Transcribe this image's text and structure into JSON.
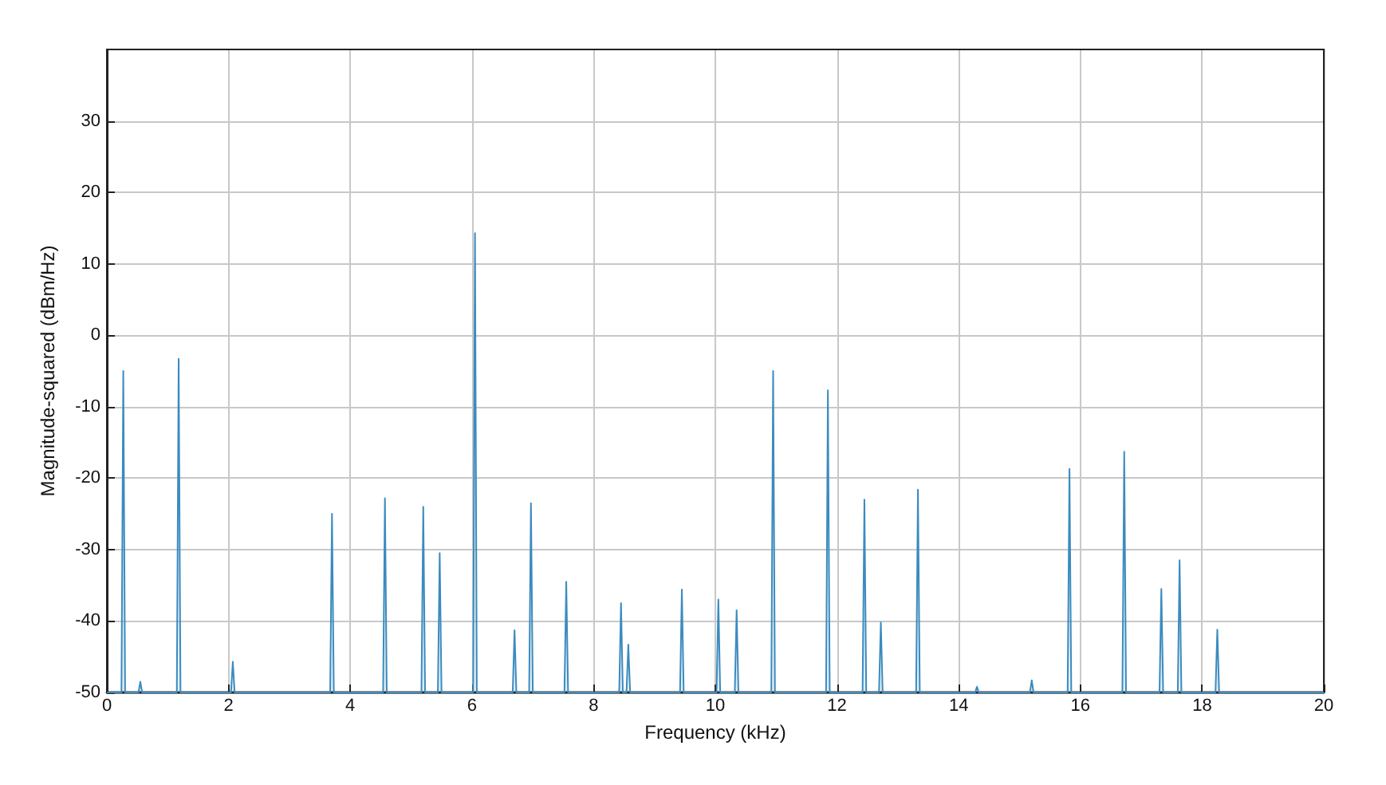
{
  "chart_data": {
    "type": "line",
    "xlabel": "Frequency (kHz)",
    "ylabel": "Magnitude-squared (dBm/Hz)",
    "xlim": [
      0,
      20
    ],
    "xticks": [
      0,
      2,
      4,
      6,
      8,
      10,
      12,
      14,
      16,
      18,
      20
    ],
    "ylim": [
      -50,
      40
    ],
    "yticks": [
      -50,
      -40,
      -30,
      -20,
      -10,
      0,
      10,
      20,
      30
    ],
    "grid": true,
    "marker": "none",
    "line_style": "solid",
    "series": [
      {
        "color": "#3b8bbf",
        "x": [
          0,
          0.24,
          0.27,
          0.3,
          0.52,
          0.55,
          0.58,
          1.15,
          1.18,
          1.21,
          2.04,
          2.07,
          2.1,
          3.67,
          3.7,
          3.73,
          4.54,
          4.57,
          4.6,
          5.17,
          5.2,
          5.23,
          5.44,
          5.47,
          5.5,
          6.02,
          6.05,
          6.08,
          6.67,
          6.7,
          6.73,
          6.94,
          6.97,
          7.0,
          7.52,
          7.55,
          7.58,
          8.42,
          8.45,
          8.48,
          8.54,
          8.57,
          8.6,
          9.42,
          9.45,
          9.48,
          10.02,
          10.05,
          10.08,
          10.32,
          10.35,
          10.38,
          10.92,
          10.95,
          10.98,
          11.82,
          11.85,
          11.88,
          12.42,
          12.45,
          12.48,
          12.69,
          12.72,
          12.75,
          13.3,
          13.33,
          13.36,
          14.27,
          14.3,
          14.33,
          15.17,
          15.2,
          15.23,
          15.79,
          15.82,
          15.85,
          16.69,
          16.72,
          16.75,
          17.3,
          17.33,
          17.36,
          17.6,
          17.63,
          17.66,
          18.22,
          18.25,
          18.28,
          20
        ],
        "values": [
          -50,
          -50,
          -5,
          -50,
          -50,
          -48.5,
          -50,
          -50,
          -3.3,
          -50,
          -50,
          -45.7,
          -50,
          -50,
          -25,
          -50,
          -50,
          -22.8,
          -50,
          -50,
          -24,
          -50,
          -50,
          -30.5,
          -50,
          -50,
          14.3,
          -50,
          -50,
          -41.3,
          -50,
          -50,
          -23.5,
          -50,
          -50,
          -34.5,
          -50,
          -50,
          -37.5,
          -50,
          -50,
          -43.3,
          -50,
          -50,
          -35.6,
          -50,
          -50,
          -37,
          -50,
          -50,
          -38.5,
          -50,
          -50,
          -5,
          -50,
          -50,
          -7.7,
          -50,
          -50,
          -23,
          -50,
          -50,
          -40.2,
          -50,
          -50,
          -21.6,
          -50,
          -50,
          -49.2,
          -50,
          -50,
          -48.3,
          -50,
          -50,
          -18.7,
          -50,
          -50,
          -16.3,
          -50,
          -50,
          -35.5,
          -50,
          -50,
          -31.5,
          -50,
          -50,
          -41.2,
          -50,
          -50
        ]
      }
    ]
  }
}
